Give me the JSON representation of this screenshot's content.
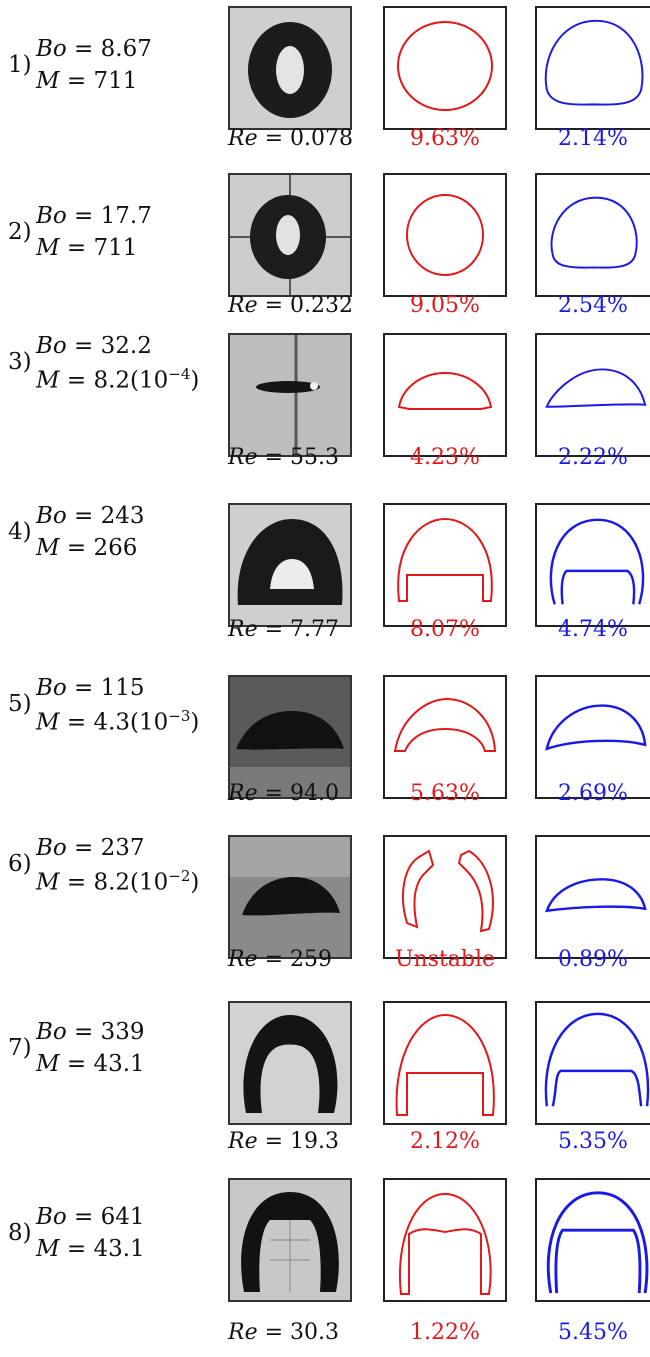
{
  "rows": [
    {
      "index": "1)",
      "bo": "8.67",
      "m": "711",
      "re": "0.078",
      "red_error": "9.63%",
      "blue_error": "2.14%"
    },
    {
      "index": "2)",
      "bo": "17.7",
      "m": "711",
      "re": "0.232",
      "red_error": "9.05%",
      "blue_error": "2.54%"
    },
    {
      "index": "3)",
      "bo": "32.2",
      "m": "8.2(10",
      "m_exp": "−4",
      "m_tail": ")",
      "re": "55.3",
      "red_error": "4.23%",
      "blue_error": "2.22%"
    },
    {
      "index": "4)",
      "bo": "243",
      "m": "266",
      "re": "7.77",
      "red_error": "8.07%",
      "blue_error": "4.74%"
    },
    {
      "index": "5)",
      "bo": "115",
      "m": "4.3(10",
      "m_exp": "−3",
      "m_tail": ")",
      "re": "94.0",
      "red_error": "5.63%",
      "blue_error": "2.69%"
    },
    {
      "index": "6)",
      "bo": "237",
      "m": "8.2(10",
      "m_exp": "−2",
      "m_tail": ")",
      "re": "259",
      "red_error": "Unstable",
      "blue_error": "0.89%"
    },
    {
      "index": "7)",
      "bo": "339",
      "m": "43.1",
      "re": "19.3",
      "red_error": "2.12%",
      "blue_error": "5.35%"
    },
    {
      "index": "8)",
      "bo": "641",
      "m": "43.1",
      "re": "30.3",
      "red_error": "1.22%",
      "blue_error": "5.45%"
    }
  ],
  "labels": {
    "bo": "Bo",
    "m": "M",
    "re": "Re",
    "eq": " = "
  },
  "colors": {
    "red": "#e0191b",
    "blue": "#1a1ae6"
  }
}
